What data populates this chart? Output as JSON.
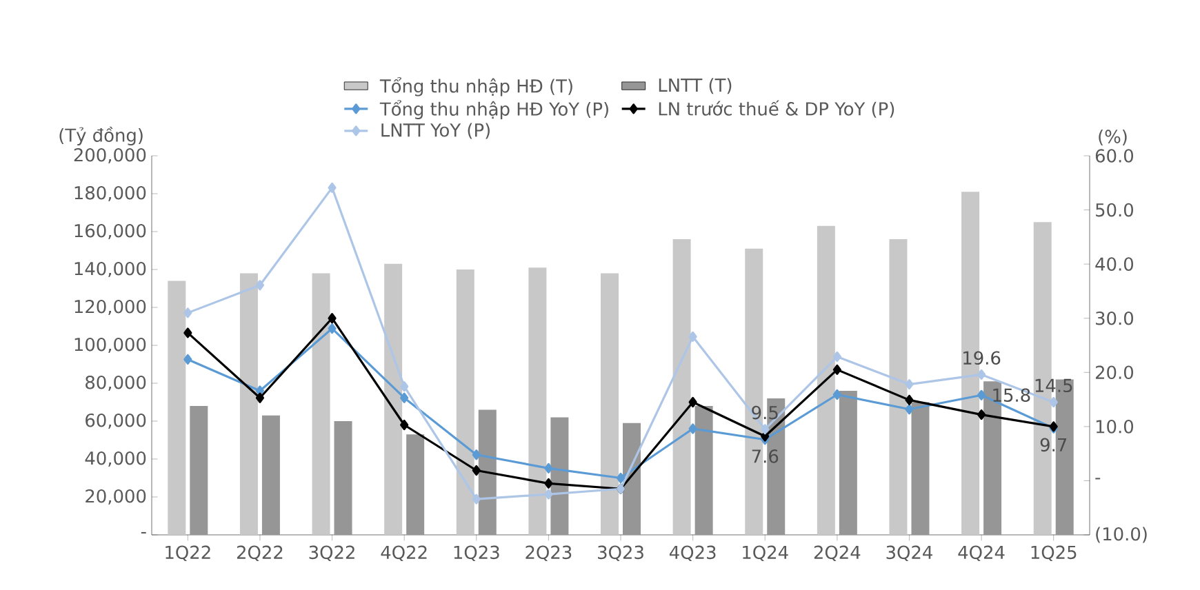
{
  "chart_data": {
    "type": "bar",
    "ylabel": "(Tỷ đồng)",
    "y2label": "(%)",
    "categories": [
      "1Q22",
      "2Q22",
      "3Q22",
      "4Q22",
      "1Q23",
      "2Q23",
      "3Q23",
      "4Q23",
      "1Q24",
      "2Q24",
      "3Q24",
      "4Q24",
      "1Q25"
    ],
    "ylim": [
      0,
      200000
    ],
    "yticks": [
      {
        "value": 0,
        "label": "-"
      },
      {
        "value": 20000,
        "label": "20,000"
      },
      {
        "value": 40000,
        "label": "40,000"
      },
      {
        "value": 60000,
        "label": "60,000"
      },
      {
        "value": 80000,
        "label": "80,000"
      },
      {
        "value": 100000,
        "label": "100,000"
      },
      {
        "value": 120000,
        "label": "120,000"
      },
      {
        "value": 140000,
        "label": "140,000"
      },
      {
        "value": 160000,
        "label": "160,000"
      },
      {
        "value": 180000,
        "label": "180,000"
      },
      {
        "value": 200000,
        "label": "200,000"
      }
    ],
    "y2lim": [
      -10,
      60
    ],
    "y2ticks": [
      {
        "value": -10,
        "label": "(10.0)"
      },
      {
        "value": 0,
        "label": "-"
      },
      {
        "value": 10,
        "label": "10.0"
      },
      {
        "value": 20,
        "label": "20.0"
      },
      {
        "value": 30,
        "label": "30.0"
      },
      {
        "value": 40,
        "label": "40.0"
      },
      {
        "value": 50,
        "label": "50.0"
      },
      {
        "value": 60,
        "label": "60.0"
      }
    ],
    "legend": "top",
    "marker": "diamond",
    "line_style": "solid",
    "series": [
      {
        "name": "Tổng thu nhập HĐ (T)",
        "color": "#c8c8c8",
        "values": [
          134000,
          138000,
          138000,
          143000,
          140000,
          141000,
          138000,
          156000,
          151000,
          163000,
          156000,
          181000,
          165000
        ]
      },
      {
        "name": "LNTT (T)",
        "color": "#969696",
        "values": [
          68000,
          63000,
          60000,
          53000,
          66000,
          62000,
          59000,
          68000,
          72000,
          76000,
          70000,
          81000,
          82000
        ]
      },
      {
        "name": "Tổng thu nhập HĐ YoY (P)",
        "type": "line",
        "axis": "y2",
        "color": "#5b9bd5",
        "values": [
          22.4,
          16.6,
          28.1,
          15.3,
          4.8,
          2.3,
          0.5,
          9.6,
          7.6,
          15.9,
          13.2,
          15.8,
          9.7
        ],
        "value_labels": [
          null,
          null,
          null,
          null,
          null,
          null,
          null,
          null,
          "7.6",
          null,
          null,
          "15.8",
          "9.7"
        ]
      },
      {
        "name": "LN trước thuế & DP YoY (P)",
        "type": "line",
        "axis": "y2",
        "color": "#000000",
        "values": [
          27.3,
          15.3,
          30.0,
          10.3,
          1.9,
          -0.5,
          -1.5,
          14.5,
          8.2,
          20.5,
          14.9,
          12.2,
          10.0
        ]
      },
      {
        "name": "LNTT YoY (P)",
        "type": "line",
        "axis": "y2",
        "color": "#adc5e7",
        "values": [
          31.0,
          36.1,
          54.1,
          17.4,
          -3.4,
          -2.5,
          -1.5,
          26.6,
          9.5,
          22.9,
          17.8,
          19.6,
          14.5
        ],
        "value_labels": [
          null,
          null,
          null,
          null,
          null,
          null,
          null,
          null,
          "9.5",
          null,
          null,
          "19.6",
          "14.5"
        ]
      }
    ]
  }
}
